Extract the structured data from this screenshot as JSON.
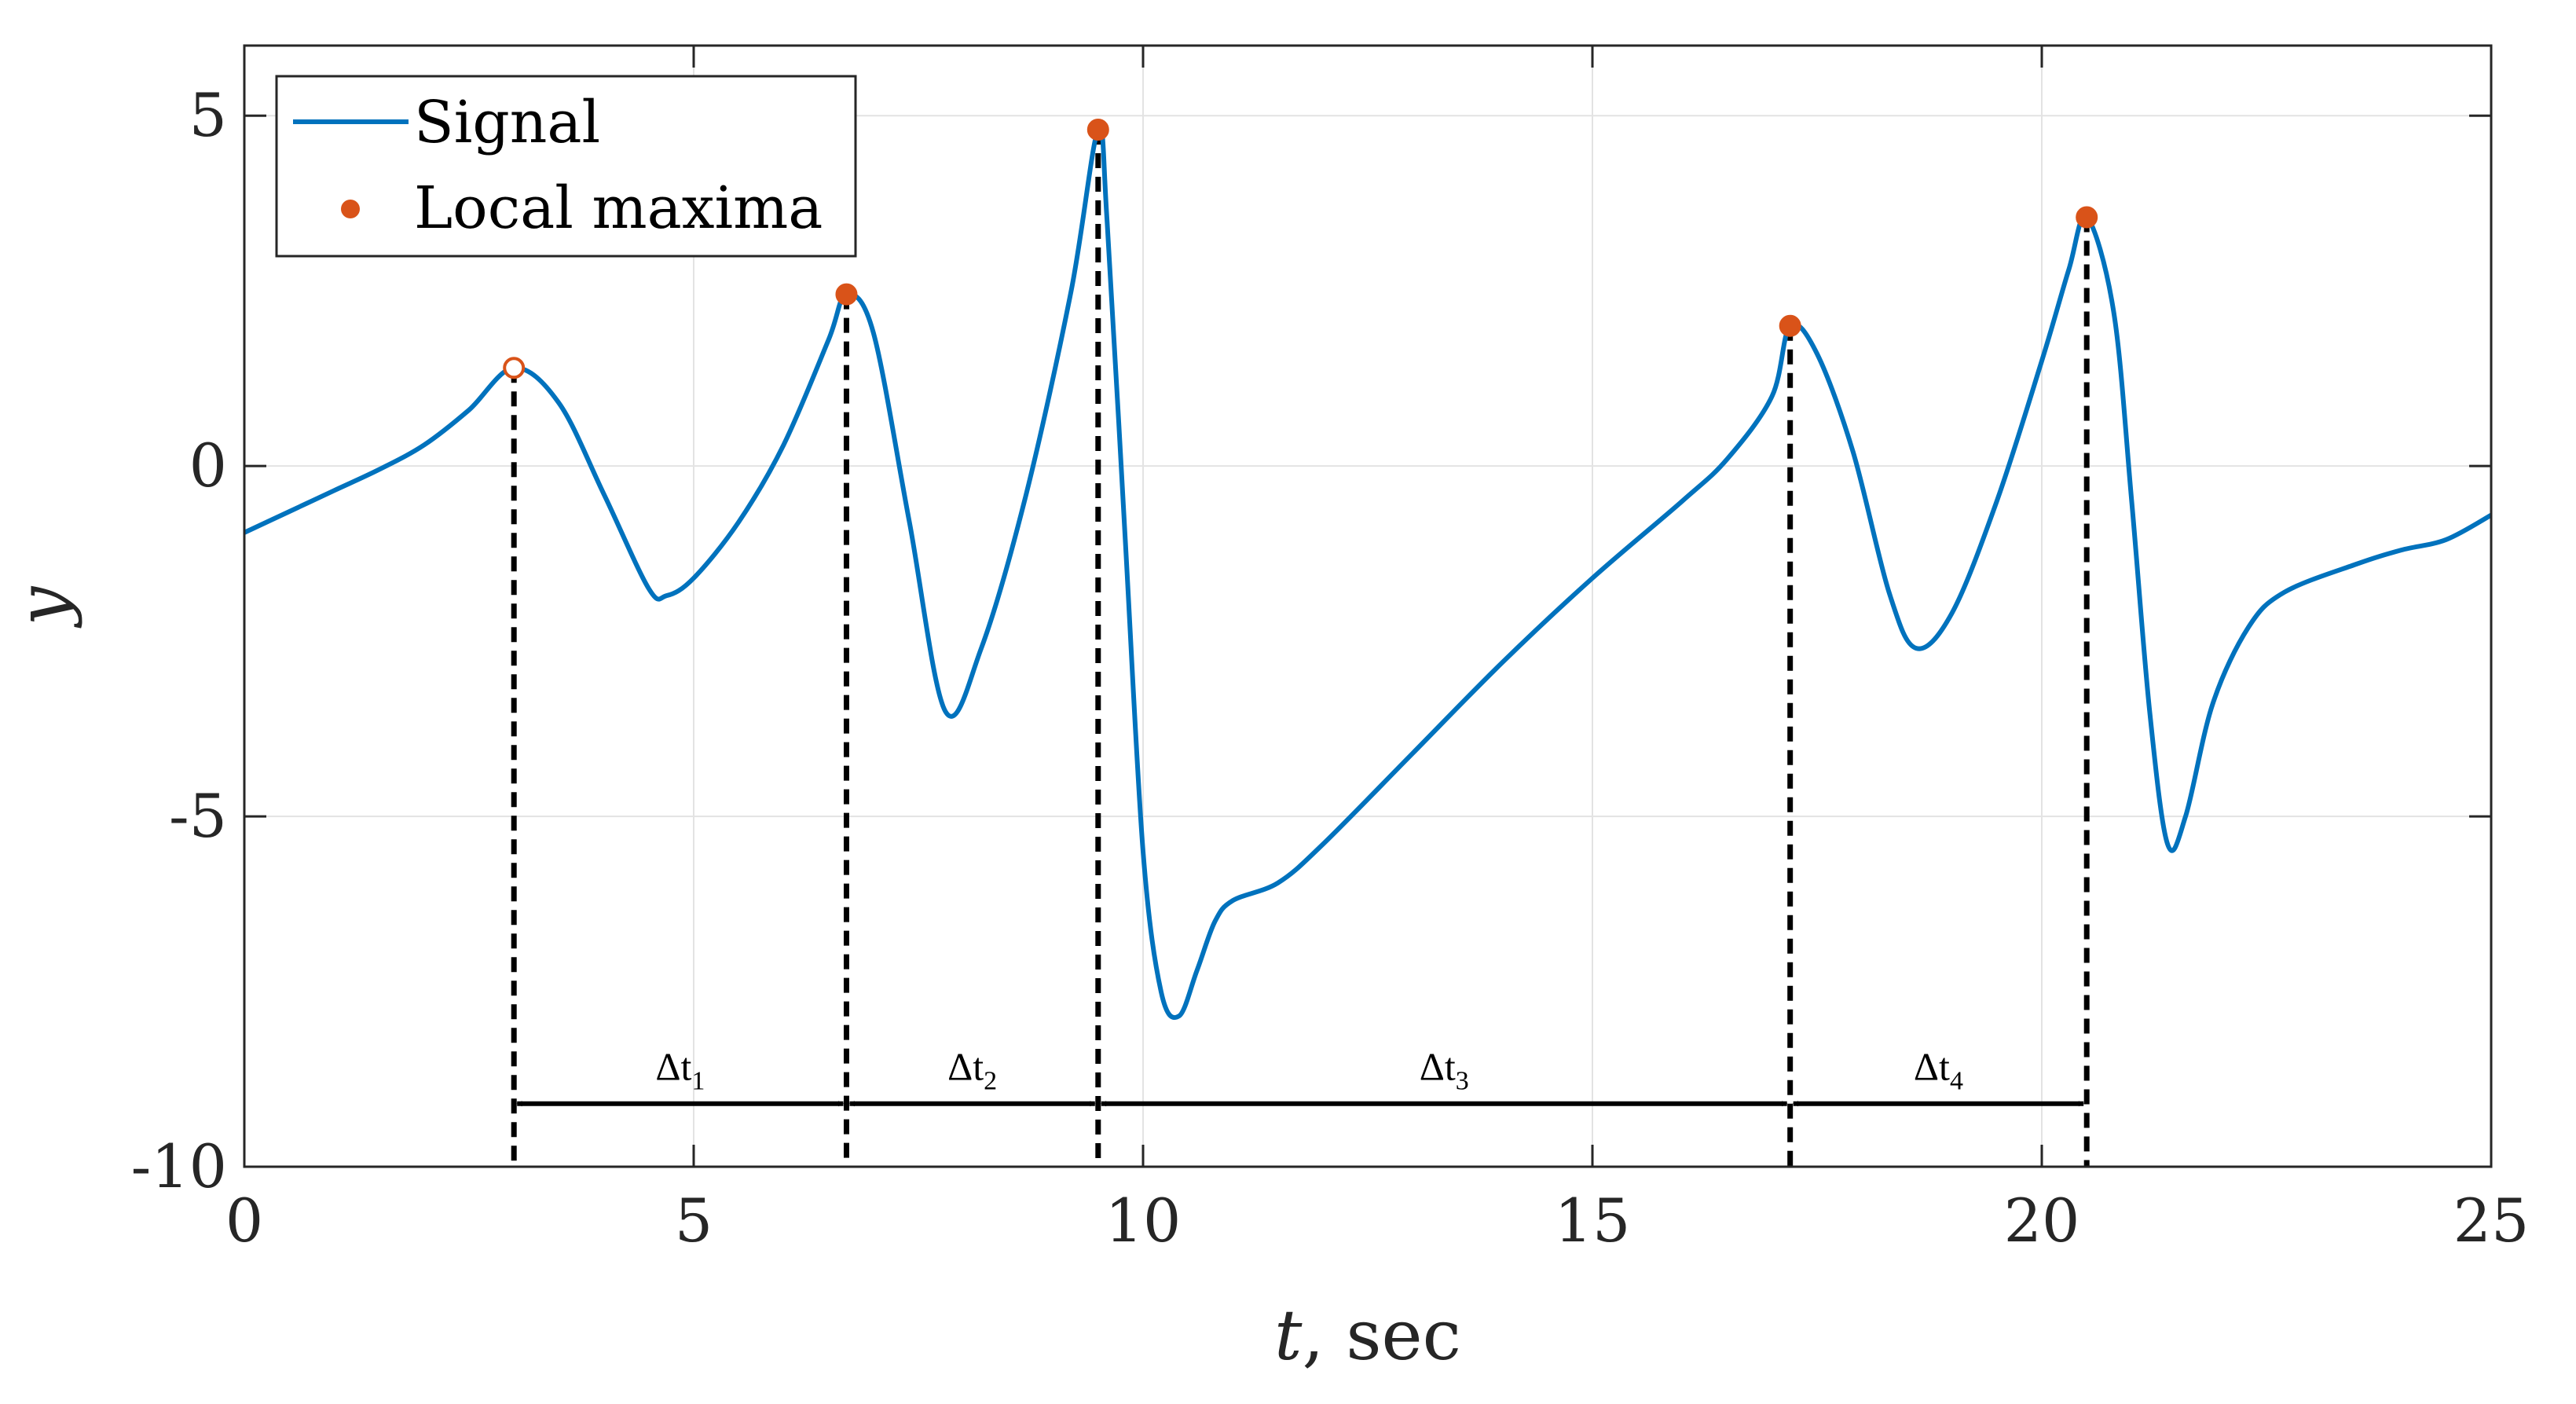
{
  "chart_data": {
    "type": "line",
    "xlabel": "t",
    "xlabel_suffix": ", sec",
    "ylabel": "y",
    "xlim": [
      0,
      25
    ],
    "ylim": [
      -10,
      6
    ],
    "grid": true,
    "x_ticks": [
      0,
      5,
      10,
      15,
      20,
      25
    ],
    "x_tick_labels": [
      "0",
      "5",
      "10",
      "15",
      "20",
      "25"
    ],
    "y_ticks": [
      -10,
      -5,
      0,
      5
    ],
    "y_tick_labels": [
      "-10",
      "-5",
      "0",
      "5"
    ],
    "legend": {
      "location": "top-left",
      "entries": [
        "Signal",
        "Local maxima"
      ]
    },
    "series": [
      {
        "name": "Signal",
        "color": "#0072BD",
        "points": [
          [
            0,
            -0.95
          ],
          [
            0.5,
            -0.65
          ],
          [
            1,
            -0.35
          ],
          [
            1.5,
            -0.05
          ],
          [
            2,
            0.3
          ],
          [
            2.5,
            0.8
          ],
          [
            3,
            1.4
          ],
          [
            3.5,
            0.9
          ],
          [
            4,
            -0.4
          ],
          [
            4.5,
            -1.75
          ],
          [
            4.7,
            -1.85
          ],
          [
            5,
            -1.6
          ],
          [
            5.5,
            -0.8
          ],
          [
            6,
            0.3
          ],
          [
            6.5,
            1.8
          ],
          [
            6.7,
            2.45
          ],
          [
            7,
            1.9
          ],
          [
            7.4,
            -0.8
          ],
          [
            7.8,
            -3.5
          ],
          [
            8.2,
            -2.6
          ],
          [
            8.7,
            -0.4
          ],
          [
            9.2,
            2.5
          ],
          [
            9.5,
            4.8
          ],
          [
            9.6,
            3.5
          ],
          [
            9.8,
            -1.0
          ],
          [
            10,
            -5.5
          ],
          [
            10.2,
            -7.5
          ],
          [
            10.4,
            -7.85
          ],
          [
            10.6,
            -7.2
          ],
          [
            10.8,
            -6.5
          ],
          [
            11,
            -6.2
          ],
          [
            11.5,
            -5.95
          ],
          [
            12,
            -5.4
          ],
          [
            13,
            -4.1
          ],
          [
            14,
            -2.8
          ],
          [
            15,
            -1.6
          ],
          [
            16,
            -0.5
          ],
          [
            16.5,
            0.1
          ],
          [
            17,
            1.0
          ],
          [
            17.2,
            2.0
          ],
          [
            17.5,
            1.6
          ],
          [
            17.9,
            0.2
          ],
          [
            18.3,
            -1.8
          ],
          [
            18.6,
            -2.6
          ],
          [
            19,
            -2.1
          ],
          [
            19.5,
            -0.5
          ],
          [
            20,
            1.5
          ],
          [
            20.3,
            2.8
          ],
          [
            20.5,
            3.55
          ],
          [
            20.8,
            2.2
          ],
          [
            21,
            -0.5
          ],
          [
            21.2,
            -3.5
          ],
          [
            21.4,
            -5.4
          ],
          [
            21.6,
            -5.0
          ],
          [
            21.9,
            -3.4
          ],
          [
            22.3,
            -2.3
          ],
          [
            22.7,
            -1.8
          ],
          [
            23.5,
            -1.4
          ],
          [
            24,
            -1.2
          ],
          [
            24.5,
            -1.05
          ],
          [
            25,
            -0.7
          ]
        ]
      }
    ],
    "local_maxima": {
      "name": "Local maxima",
      "color": "#D95319",
      "points": [
        {
          "x": 3.0,
          "y": 1.4,
          "filled": false
        },
        {
          "x": 6.7,
          "y": 2.45,
          "filled": true
        },
        {
          "x": 9.5,
          "y": 4.8,
          "filled": true
        },
        {
          "x": 17.2,
          "y": 2.0,
          "filled": true
        },
        {
          "x": 20.5,
          "y": 3.55,
          "filled": true
        }
      ]
    },
    "intervals": [
      {
        "label": "Δt",
        "sub": "1",
        "from": 3.0,
        "to": 6.7
      },
      {
        "label": "Δt",
        "sub": "2",
        "from": 6.7,
        "to": 9.5
      },
      {
        "label": "Δt",
        "sub": "3",
        "from": 9.5,
        "to": 17.2
      },
      {
        "label": "Δt",
        "sub": "4",
        "from": 17.2,
        "to": 20.5
      }
    ],
    "interval_arrow_y": -9.1
  }
}
